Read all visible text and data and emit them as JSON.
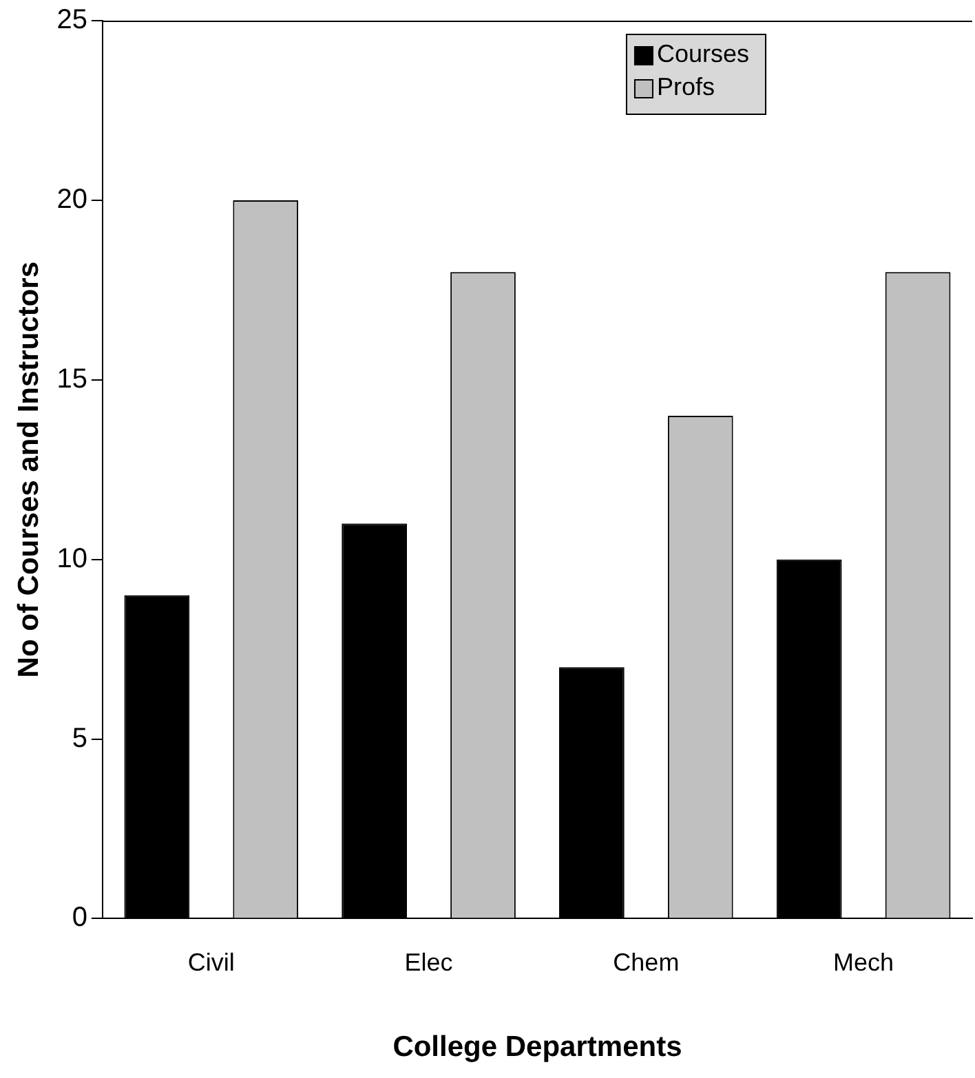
{
  "chart_data": {
    "type": "bar",
    "xlabel": "College Departments",
    "ylabel": "No of Courses and Instructors",
    "categories": [
      "Civil",
      "Elec",
      "Chem",
      "Mech"
    ],
    "series": [
      {
        "name": "Courses",
        "color": "#000000",
        "values": [
          9,
          11,
          7,
          10
        ]
      },
      {
        "name": "Profs",
        "color": "#c0c0c0",
        "values": [
          20,
          18,
          14,
          18
        ]
      }
    ],
    "ylim": [
      0,
      25
    ],
    "yticks": [
      0,
      5,
      10,
      15,
      20,
      25
    ],
    "grid": false,
    "legend": "top right"
  }
}
